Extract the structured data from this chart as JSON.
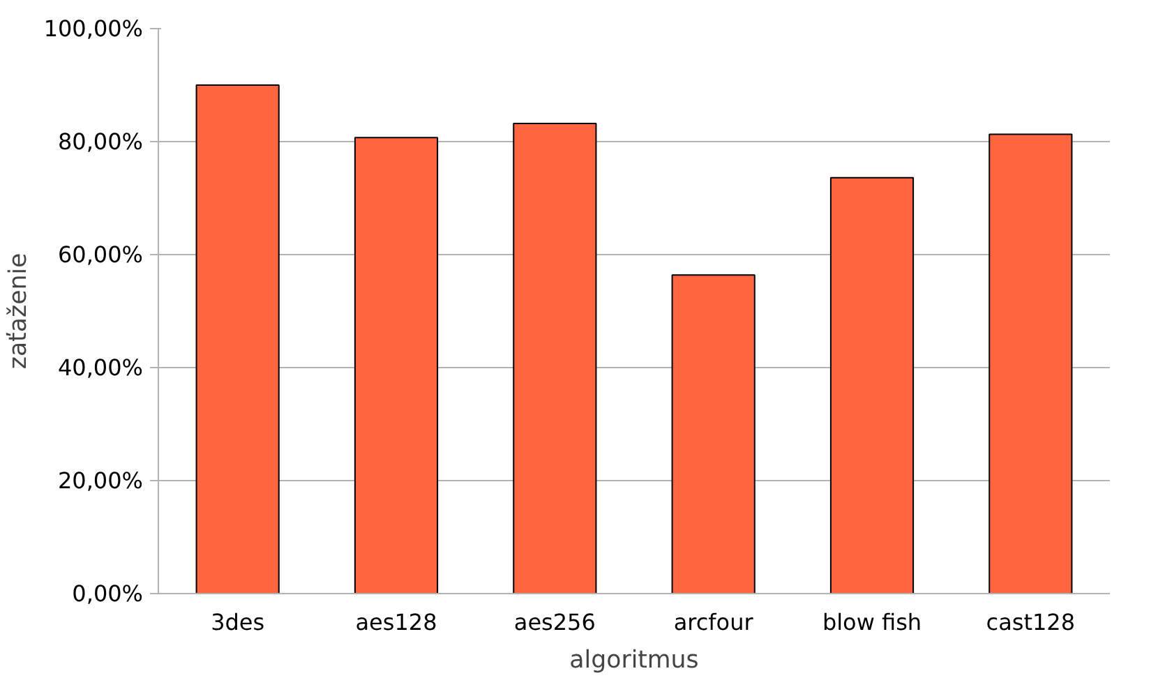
{
  "chart_data": {
    "type": "bar",
    "xlabel": "algoritmus",
    "ylabel": "zaťaženie",
    "categories": [
      "3des",
      "aes128",
      "aes256",
      "arcfour",
      "blow fish",
      "cast128"
    ],
    "values": [
      90.0,
      80.7,
      83.2,
      56.4,
      73.6,
      81.3
    ],
    "color": "#ff6640",
    "ylim": [
      0,
      100
    ],
    "yticks": [
      {
        "value": 0,
        "label": "0,00%"
      },
      {
        "value": 20,
        "label": "20,00%"
      },
      {
        "value": 40,
        "label": "40,00%"
      },
      {
        "value": 60,
        "label": "60,00%"
      },
      {
        "value": 80,
        "label": "80,00%"
      },
      {
        "value": 100,
        "label": "100,00%"
      }
    ],
    "grid": "y"
  }
}
